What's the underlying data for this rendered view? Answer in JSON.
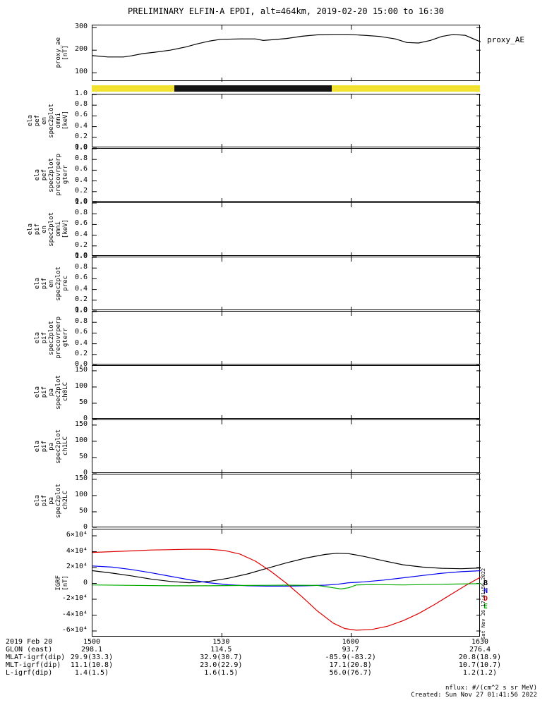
{
  "title": "PRELIMINARY ELFIN-A EPDI, alt=464km, 2019-02-20 15:00 to 16:30",
  "right_label_proxy": "proxy_AE",
  "vertical_timestamp": "Sat Nov 26 17:41:56 2022",
  "footer": {
    "nflux": "nflux: #/(cm^2 s sr MeV)",
    "created": "Created: Sun Nov 27 01:41:56 2022"
  },
  "colors": {
    "line_black": "#000000",
    "line_blue": "#0000ee",
    "line_red": "#dd0000",
    "line_green": "#00aa00",
    "bar_yellow": "#f0e22e",
    "bar_black": "#141414"
  },
  "time_axis": {
    "date_label": "2019 Feb 20",
    "ticks": [
      "1500",
      "1530",
      "1600",
      "1630"
    ],
    "fracs": [
      0,
      0.3333,
      0.6667,
      1
    ]
  },
  "axis_rows": [
    {
      "label": "GLON (east)",
      "values": [
        "298.1",
        "114.5",
        "93.7",
        "276.4"
      ]
    },
    {
      "label": "MLAT-igrf(dip)",
      "values": [
        "29.9(33.3)",
        "32.9(30.7)",
        "-85.9(-83.2)",
        "20.8(18.9)"
      ]
    },
    {
      "label": "MLT-igrf(dip)",
      "values": [
        "11.1(10.8)",
        "23.0(22.9)",
        "17.1(20.8)",
        "10.7(10.7)"
      ]
    },
    {
      "label": "L-igrf(dip)",
      "values": [
        "1.4(1.5)",
        "1.6(1.5)",
        "56.0(76.7)",
        "1.2(1.2)"
      ]
    }
  ],
  "chart_data": {
    "type": "line",
    "title": "PRELIMINARY ELFIN-A EPDI, alt=464km, 2019-02-20 15:00 to 16:30",
    "x_range": [
      "15:00",
      "16:30"
    ],
    "panels": [
      {
        "id": "proxy_ae",
        "kind": "line",
        "ylabel_lines": [
          "proxy_ae",
          "[nT]"
        ],
        "ylim": [
          60,
          310
        ],
        "yticks": [
          {
            "v": 300,
            "label": "300"
          },
          {
            "v": 200,
            "label": "200"
          },
          {
            "v": 100,
            "label": "100"
          }
        ],
        "series": [
          {
            "name": "proxy_AE",
            "color": "#000000",
            "x": [
              0,
              0.04,
              0.08,
              0.1,
              0.13,
              0.16,
              0.2,
              0.24,
              0.27,
              0.3,
              0.33,
              0.38,
              0.42,
              0.44,
              0.46,
              0.5,
              0.54,
              0.58,
              0.62,
              0.66,
              0.7,
              0.74,
              0.78,
              0.81,
              0.84,
              0.87,
              0.9,
              0.93,
              0.96,
              1.0
            ],
            "y": [
              176,
              170,
              170,
              175,
              185,
              191,
              200,
              214,
              228,
              240,
              248,
              250,
              250,
              243,
              246,
              252,
              262,
              268,
              270,
              270,
              266,
              261,
              250,
              234,
              232,
              243,
              261,
              270,
              266,
              237
            ]
          }
        ]
      },
      {
        "id": "status_bar",
        "kind": "bar-strip",
        "segments": [
          {
            "color": "#f0e22e",
            "from": 0,
            "to": 0.213
          },
          {
            "color": "#141414",
            "from": 0.213,
            "to": 0.618
          },
          {
            "color": "#f0e22e",
            "from": 0.618,
            "to": 1
          }
        ]
      },
      {
        "id": "ela_pef_en_spec2plot_omni",
        "kind": "line",
        "ylabel_lines": [
          "ela",
          "pef",
          "en",
          "spec2plot",
          "omni",
          "[keV]"
        ],
        "ylim": [
          0,
          1
        ],
        "yticks": [
          {
            "v": 1,
            "label": "1.0"
          },
          {
            "v": 0.8,
            "label": "0.8"
          },
          {
            "v": 0.6,
            "label": "0.6"
          },
          {
            "v": 0.4,
            "label": "0.4"
          },
          {
            "v": 0.2,
            "label": "0.2"
          },
          {
            "v": 0,
            "label": "0.0"
          }
        ],
        "series": []
      },
      {
        "id": "ela_pef_spec2plot_precovrperp_gterr",
        "kind": "line",
        "ylabel_lines": [
          "ela",
          "pef",
          "spec2plot",
          "precovrperp",
          "gterr"
        ],
        "ylim": [
          0,
          1
        ],
        "yticks": [
          {
            "v": 1,
            "label": "1.0"
          },
          {
            "v": 0.8,
            "label": "0.8"
          },
          {
            "v": 0.6,
            "label": "0.6"
          },
          {
            "v": 0.4,
            "label": "0.4"
          },
          {
            "v": 0.2,
            "label": "0.2"
          },
          {
            "v": 0,
            "label": "0.0"
          }
        ],
        "series": []
      },
      {
        "id": "ela_pif_en_spec2plot_omni",
        "kind": "line",
        "ylabel_lines": [
          "ela",
          "pif",
          "en",
          "spec2plot",
          "omni",
          "[keV]"
        ],
        "ylim": [
          0,
          1
        ],
        "yticks": [
          {
            "v": 1,
            "label": "1.0"
          },
          {
            "v": 0.8,
            "label": "0.8"
          },
          {
            "v": 0.6,
            "label": "0.6"
          },
          {
            "v": 0.4,
            "label": "0.4"
          },
          {
            "v": 0.2,
            "label": "0.2"
          },
          {
            "v": 0,
            "label": "0.0"
          }
        ],
        "series": []
      },
      {
        "id": "ela_pif_en_spec2plot_prec",
        "kind": "line",
        "ylabel_lines": [
          "ela",
          "pif",
          "en",
          "spec2plot",
          "prec"
        ],
        "ylim": [
          0,
          1
        ],
        "yticks": [
          {
            "v": 1,
            "label": "1.0"
          },
          {
            "v": 0.8,
            "label": "0.8"
          },
          {
            "v": 0.6,
            "label": "0.6"
          },
          {
            "v": 0.4,
            "label": "0.4"
          },
          {
            "v": 0.2,
            "label": "0.2"
          },
          {
            "v": 0,
            "label": "0.0"
          }
        ],
        "series": []
      },
      {
        "id": "ela_pif_spec2plot_precovrperp_gterr",
        "kind": "line",
        "ylabel_lines": [
          "ela",
          "pif",
          "spec2plot",
          "precovrperp",
          "gterr"
        ],
        "ylim": [
          0,
          1
        ],
        "yticks": [
          {
            "v": 1,
            "label": "1.0"
          },
          {
            "v": 0.8,
            "label": "0.8"
          },
          {
            "v": 0.6,
            "label": "0.6"
          },
          {
            "v": 0.4,
            "label": "0.4"
          },
          {
            "v": 0.2,
            "label": "0.2"
          },
          {
            "v": 0,
            "label": "0.0"
          }
        ],
        "series": []
      },
      {
        "id": "ela_pif_pa_spec2plot_ch0LC",
        "kind": "line",
        "ylabel_lines": [
          "ela",
          "pif",
          "pa",
          "spec2plot",
          "ch0LC"
        ],
        "ylim": [
          0,
          165
        ],
        "yticks": [
          {
            "v": 150,
            "label": "150"
          },
          {
            "v": 100,
            "label": "100"
          },
          {
            "v": 50,
            "label": "50"
          },
          {
            "v": 0,
            "label": "0"
          }
        ],
        "series": []
      },
      {
        "id": "ela_pif_pa_spec2plot_ch1LC",
        "kind": "line",
        "ylabel_lines": [
          "ela",
          "pif",
          "pa",
          "spec2plot",
          "ch1LC"
        ],
        "ylim": [
          0,
          165
        ],
        "yticks": [
          {
            "v": 150,
            "label": "150"
          },
          {
            "v": 100,
            "label": "100"
          },
          {
            "v": 50,
            "label": "50"
          },
          {
            "v": 0,
            "label": "0"
          }
        ],
        "series": []
      },
      {
        "id": "ela_pif_pa_spec2plot_ch2LC",
        "kind": "line",
        "ylabel_lines": [
          "ela",
          "pif",
          "pa",
          "spec2plot",
          "ch2LC"
        ],
        "ylim": [
          0,
          165
        ],
        "yticks": [
          {
            "v": 150,
            "label": "150"
          },
          {
            "v": 100,
            "label": "100"
          },
          {
            "v": 50,
            "label": "50"
          },
          {
            "v": 0,
            "label": "0"
          }
        ],
        "series": []
      },
      {
        "id": "igrf",
        "kind": "line",
        "ylabel_lines": [
          "IGRF",
          "[nT]"
        ],
        "ylim": [
          -68000,
          68000
        ],
        "yticks": [
          {
            "v": 60000,
            "label": "6×10⁴"
          },
          {
            "v": 40000,
            "label": "4×10⁴"
          },
          {
            "v": 20000,
            "label": "2×10⁴"
          },
          {
            "v": 0,
            "label": "0"
          },
          {
            "v": -20000,
            "label": "-2×10⁴"
          },
          {
            "v": -40000,
            "label": "-4×10⁴"
          },
          {
            "v": -60000,
            "label": "-6×10⁴"
          }
        ],
        "legend": [
          {
            "label": "B",
            "color": "#000000"
          },
          {
            "label": "N",
            "color": "#0000ee"
          },
          {
            "label": "D",
            "color": "#dd0000"
          },
          {
            "label": "E",
            "color": "#00aa00"
          }
        ],
        "series": [
          {
            "name": "B",
            "color": "#000000",
            "x": [
              0,
              0.05,
              0.1,
              0.15,
              0.2,
              0.25,
              0.3,
              0.35,
              0.4,
              0.45,
              0.5,
              0.55,
              0.6,
              0.63,
              0.66,
              0.7,
              0.75,
              0.8,
              0.85,
              0.9,
              0.95,
              1.0
            ],
            "y": [
              16000,
              13000,
              9500,
              5500,
              2500,
              800,
              2500,
              6500,
              12000,
              19000,
              26000,
              32000,
              36500,
              38000,
              37500,
              34000,
              28500,
              23500,
              20500,
              19000,
              18500,
              19500
            ]
          },
          {
            "name": "N",
            "color": "#0000ee",
            "x": [
              0,
              0.05,
              0.1,
              0.15,
              0.2,
              0.25,
              0.3,
              0.35,
              0.4,
              0.45,
              0.5,
              0.55,
              0.6,
              0.63,
              0.66,
              0.7,
              0.75,
              0.8,
              0.85,
              0.9,
              0.95,
              1.0
            ],
            "y": [
              22000,
              20500,
              17500,
              13500,
              9000,
              4500,
              800,
              -1800,
              -3000,
              -3500,
              -3500,
              -3000,
              -2200,
              -1200,
              800,
              2000,
              4200,
              7000,
              10000,
              12800,
              14800,
              16000
            ]
          },
          {
            "name": "D",
            "color": "#dd0000",
            "x": [
              0,
              0.05,
              0.1,
              0.15,
              0.2,
              0.25,
              0.3,
              0.34,
              0.38,
              0.42,
              0.46,
              0.5,
              0.54,
              0.58,
              0.62,
              0.65,
              0.68,
              0.72,
              0.76,
              0.8,
              0.84,
              0.88,
              0.92,
              0.96,
              1.0
            ],
            "y": [
              39000,
              40000,
              41000,
              42000,
              42500,
              43000,
              43000,
              41500,
              37000,
              28000,
              15000,
              0,
              -17000,
              -35000,
              -50000,
              -57000,
              -59000,
              -58000,
              -54000,
              -47000,
              -38000,
              -27000,
              -15000,
              -3000,
              8000
            ]
          },
          {
            "name": "E",
            "color": "#00aa00",
            "x": [
              0,
              0.1,
              0.2,
              0.3,
              0.4,
              0.5,
              0.58,
              0.62,
              0.64,
              0.66,
              0.68,
              0.72,
              0.8,
              0.9,
              1.0
            ],
            "y": [
              -2000,
              -2500,
              -3000,
              -3000,
              -2600,
              -2200,
              -2600,
              -5500,
              -7000,
              -5500,
              -2000,
              -1500,
              -2000,
              -1200,
              -300
            ]
          }
        ]
      }
    ]
  }
}
